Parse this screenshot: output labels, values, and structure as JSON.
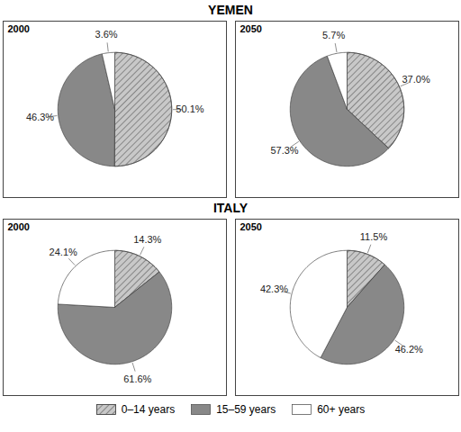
{
  "chart_data": [
    {
      "type": "pie",
      "title": "YEMEN",
      "subtitle": "2000",
      "categories": [
        "0–14 years",
        "15–59 years",
        "60+ years"
      ],
      "values": [
        50.1,
        46.3,
        3.6
      ],
      "value_labels": [
        "50.1%",
        "46.3%",
        "3.6%"
      ],
      "colors": [
        "#c8c8c8",
        "#888888",
        "#ffffff"
      ],
      "data_labels": true,
      "legend": "bottom"
    },
    {
      "type": "pie",
      "title": "YEMEN",
      "subtitle": "2050",
      "categories": [
        "0–14 years",
        "15–59 years",
        "60+ years"
      ],
      "values": [
        37.0,
        57.3,
        5.7
      ],
      "value_labels": [
        "37.0%",
        "57.3%",
        "5.7%"
      ],
      "colors": [
        "#c8c8c8",
        "#888888",
        "#ffffff"
      ],
      "data_labels": true,
      "legend": "bottom"
    },
    {
      "type": "pie",
      "title": "ITALY",
      "subtitle": "2000",
      "categories": [
        "0–14 years",
        "15–59 years",
        "60+ years"
      ],
      "values": [
        14.3,
        61.6,
        24.1
      ],
      "value_labels": [
        "14.3%",
        "61.6%",
        "24.1%"
      ],
      "colors": [
        "#c8c8c8",
        "#888888",
        "#ffffff"
      ],
      "data_labels": true,
      "legend": "bottom"
    },
    {
      "type": "pie",
      "title": "ITALY",
      "subtitle": "2050",
      "categories": [
        "0–14 years",
        "15–59 years",
        "60+ years"
      ],
      "values": [
        11.5,
        46.2,
        42.3
      ],
      "value_labels": [
        "11.5%",
        "46.2%",
        "42.3%"
      ],
      "colors": [
        "#c8c8c8",
        "#888888",
        "#ffffff"
      ],
      "data_labels": true,
      "legend": "bottom"
    }
  ]
}
